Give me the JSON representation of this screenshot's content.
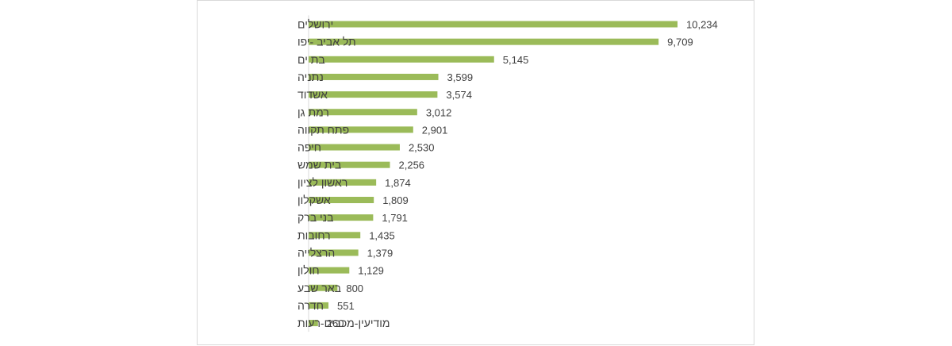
{
  "chart_data": {
    "type": "bar",
    "orientation": "horizontal",
    "title": "",
    "xlabel": "",
    "ylabel": "",
    "grid": false,
    "legend": "none",
    "bar_color": "#9bbb59",
    "xlim": [
      0,
      10234
    ],
    "categories": [
      "ירושלים",
      "תל אביב -יפו",
      "בת ים",
      "נתניה",
      "אשדוד",
      "רמת גן",
      "פתח תקווה",
      "חיפה",
      "בית שמש",
      "ראשון לציון",
      "אשקלון",
      "בני ברק",
      "רחובות",
      "הרצלייה",
      "חולון",
      "באר שבע",
      "חדרה",
      "מודיעין-מכבים-רעות"
    ],
    "values": [
      10234,
      9709,
      5145,
      3599,
      3574,
      3012,
      2901,
      2530,
      2256,
      1874,
      1809,
      1791,
      1435,
      1379,
      1129,
      800,
      551,
      260
    ],
    "value_labels": [
      "10,234",
      "9,709",
      "5,145",
      "3,599",
      "3,574",
      "3,012",
      "2,901",
      "2,530",
      "2,256",
      "1,874",
      "1,809",
      "1,791",
      "1,435",
      "1,379",
      "1,129",
      "800",
      "551",
      "260"
    ]
  }
}
